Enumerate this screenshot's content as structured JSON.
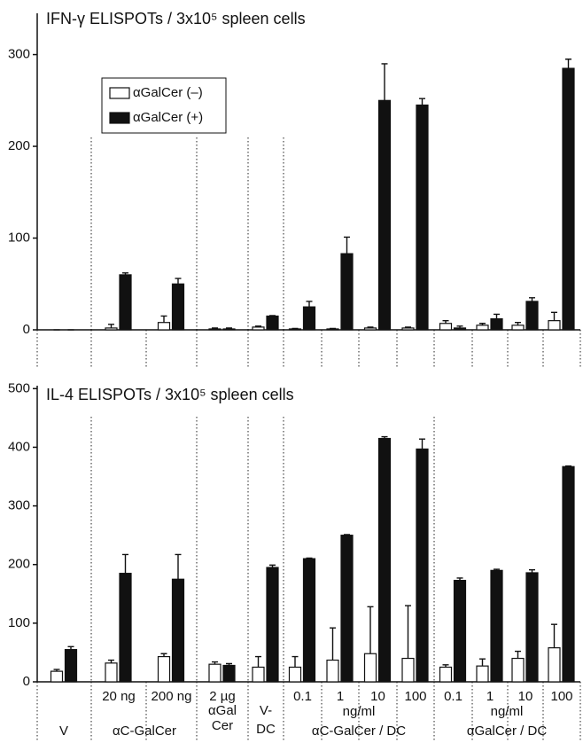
{
  "chart_data": [
    {
      "type": "bar",
      "title": "IFN-γ ELISPOTs / 3x10⁵ spleen cells",
      "ylim": [
        0,
        345
      ],
      "yticks": [
        0,
        100,
        200,
        300
      ],
      "legend": "upper left",
      "series": [
        {
          "name": "αGalCer (–)",
          "color": "#ffffff",
          "values": [
            0,
            2,
            8,
            1,
            3,
            1,
            1,
            2,
            2,
            7,
            5,
            5,
            10
          ],
          "errors": [
            0,
            4,
            7,
            1,
            1,
            0.5,
            0.5,
            1,
            1,
            3,
            2,
            3,
            9
          ]
        },
        {
          "name": "αGalCer (+)",
          "color": "#111111",
          "values": [
            0,
            60,
            50,
            1,
            15,
            25,
            83,
            250,
            245,
            2,
            12,
            31,
            285
          ],
          "errors": [
            0,
            2,
            6,
            1,
            0.5,
            6,
            18,
            40,
            7,
            2,
            5,
            4,
            10
          ]
        }
      ]
    },
    {
      "type": "bar",
      "title": "IL-4 ELISPOTs / 3x10⁵ spleen cells",
      "ylim": [
        0,
        505
      ],
      "yticks": [
        0,
        100,
        200,
        300,
        400,
        500
      ],
      "categories": [
        null,
        "20 ng",
        "200 ng",
        "2 µg",
        null,
        "0.1",
        "1",
        "10",
        "100",
        "0.1",
        "1",
        "10",
        "100"
      ],
      "groups": [
        [
          "V"
        ],
        [
          "αC-GalCer"
        ],
        [
          "αGal",
          "Cer"
        ],
        [
          "V-",
          "DC"
        ],
        [
          "ng/ml",
          "αC-GalCer / DC"
        ],
        [
          "ng/ml",
          "αGalCer / DC"
        ]
      ],
      "series": [
        {
          "color": "#ffffff",
          "values": [
            18,
            32,
            43,
            30,
            25,
            25,
            37,
            48,
            40,
            25,
            27,
            40,
            58
          ],
          "errors": [
            3,
            5,
            5,
            4,
            18,
            18,
            55,
            80,
            90,
            4,
            12,
            12,
            40
          ]
        },
        {
          "color": "#111111",
          "values": [
            55,
            185,
            175,
            28,
            195,
            210,
            250,
            415,
            397,
            173,
            190,
            186,
            367
          ],
          "errors": [
            5,
            32,
            42,
            3,
            4,
            1,
            1,
            3,
            17,
            4,
            2,
            5,
            1
          ]
        }
      ]
    }
  ]
}
